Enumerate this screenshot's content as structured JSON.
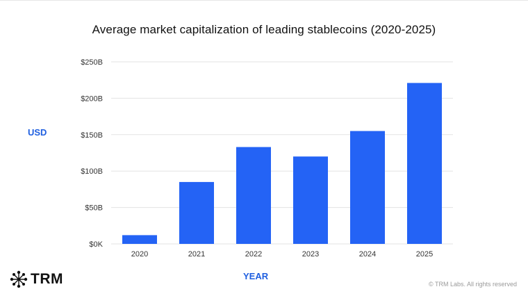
{
  "title": "Average market capitalization of leading stablecoins (2020-2025)",
  "brand": "TRM",
  "copyright": "© TRM Labs. All rights reserved",
  "colors": {
    "bar": "#2463f5",
    "grid": "#e3e3e3",
    "accent": "#1f5fe0"
  },
  "chart_data": {
    "type": "bar",
    "categories": [
      "2020",
      "2021",
      "2022",
      "2023",
      "2024",
      "2025"
    ],
    "values": [
      12,
      85,
      133,
      120,
      155,
      221
    ],
    "ylim": [
      0,
      250
    ],
    "yticks": [
      0,
      50,
      100,
      150,
      200,
      250
    ],
    "ytick_labels": [
      "$0K",
      "$50B",
      "$100B",
      "$150B",
      "$200B",
      "$250B"
    ],
    "xlabel": "YEAR",
    "ylabel": "USD",
    "grid": true
  }
}
